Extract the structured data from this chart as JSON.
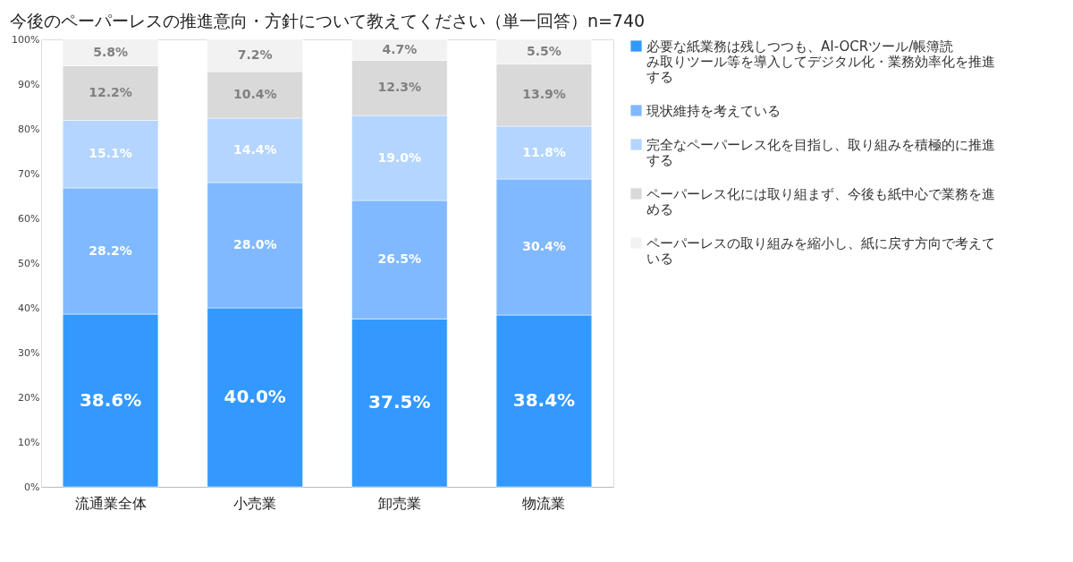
{
  "chart_data": {
    "type": "bar",
    "stacked": true,
    "title": "今後のペーパーレスの推進意向・方針について教えてください（単一回答）n=740",
    "categories": [
      "流通業全体",
      "小売業",
      "卸売業",
      "物流業"
    ],
    "series": [
      {
        "name": "必要な紙業務は残しつつも、AI-OCRツール/帳簿読み取りツール等を導入してデジタル化・業務効率化を推進する",
        "color": "#3399ff",
        "values": [
          38.6,
          40.0,
          37.5,
          38.4
        ],
        "value_labels": [
          "38.6%",
          "40.0%",
          "37.5%",
          "38.4%"
        ]
      },
      {
        "name": "現状維持を考えている",
        "color": "#80b9ff",
        "values": [
          28.2,
          28.0,
          26.5,
          30.4
        ],
        "value_labels": [
          "28.2%",
          "28.0%",
          "26.5%",
          "30.4%"
        ]
      },
      {
        "name": "完全なペーパーレス化を目指し、取り組みを積極的に推進する",
        "color": "#b3d5ff",
        "values": [
          15.1,
          14.4,
          19.0,
          11.8
        ],
        "value_labels": [
          "15.1%",
          "14.4%",
          "19.0%",
          "11.8%"
        ]
      },
      {
        "name": "ペーパーレス化には取り組まず、今後も紙中心で業務を進める",
        "color": "#d9d9d9",
        "values": [
          12.2,
          10.4,
          12.3,
          13.9
        ],
        "value_labels": [
          "12.2%",
          "10.4%",
          "12.3%",
          "13.9%"
        ]
      },
      {
        "name": "ペーパーレスの取り組みを縮小し、紙に戻す方向で考えている",
        "color": "#f2f2f2",
        "values": [
          5.8,
          7.2,
          4.7,
          5.5
        ],
        "value_labels": [
          "5.8%",
          "7.2%",
          "4.7%",
          "5.5%"
        ]
      }
    ],
    "ylim": [
      0,
      100
    ],
    "yticks": [
      {
        "value": 0,
        "label": "0%"
      },
      {
        "value": 10,
        "label": "10%"
      },
      {
        "value": 20,
        "label": "20%"
      },
      {
        "value": 30,
        "label": "30%"
      },
      {
        "value": 40,
        "label": "40%"
      },
      {
        "value": 50,
        "label": "50%"
      },
      {
        "value": 60,
        "label": "60%"
      },
      {
        "value": 70,
        "label": "70%"
      },
      {
        "value": 80,
        "label": "80%"
      },
      {
        "value": 90,
        "label": "90%"
      },
      {
        "value": 100,
        "label": "100%"
      }
    ],
    "grid": false,
    "legend": "right"
  }
}
